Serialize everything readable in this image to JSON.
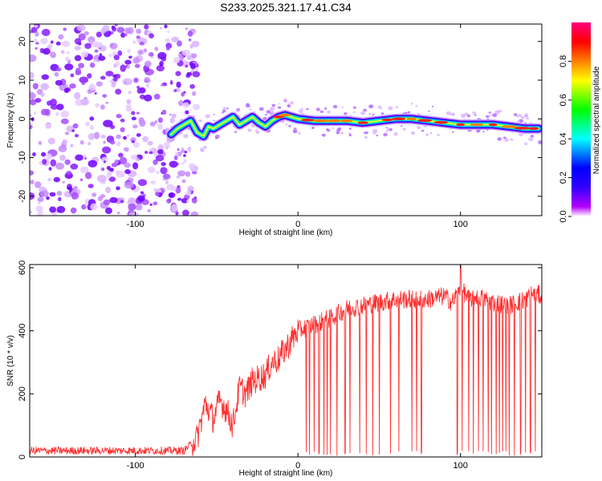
{
  "title": "S233.2025.321.17.41.C34",
  "chart_data": [
    {
      "type": "heatmap",
      "xlabel": "Height of straight line (km)",
      "ylabel": "Frequency (Hz)",
      "xlim": [
        -165,
        150
      ],
      "ylim": [
        -25,
        24.5
      ],
      "xticks": [
        -100,
        0,
        100
      ],
      "yticks": [
        -20,
        -10,
        0,
        10,
        20
      ],
      "xtick_labels": [
        "-100",
        "0",
        "100"
      ],
      "ytick_labels": [
        "-20",
        "-10",
        "0",
        "10",
        "20"
      ],
      "noise_region_km": [
        -165,
        -70
      ],
      "signal_track": {
        "x": [
          -78,
          -74,
          -70,
          -66,
          -62,
          -58,
          -55,
          -52,
          -48,
          -44,
          -40,
          -36,
          -32,
          -28,
          -24,
          -20,
          -16,
          -12,
          -8,
          -4,
          0,
          10,
          20,
          30,
          40,
          50,
          60,
          70,
          80,
          90,
          100,
          110,
          120,
          130,
          140,
          148
        ],
        "y": [
          -4,
          -2.5,
          -1.5,
          -0.5,
          -3.5,
          -4.5,
          -2,
          -2.5,
          -1.5,
          -0.5,
          0.5,
          -1.5,
          -0.5,
          0.5,
          -1,
          -2,
          -0.5,
          0.5,
          1,
          0.5,
          0,
          -0.5,
          -0.5,
          -0.5,
          -1,
          -0.5,
          0,
          0,
          -0.5,
          -1,
          -1.5,
          -1.5,
          -1.5,
          -2,
          -2.5,
          -2.5
        ]
      },
      "colorbar": {
        "label": "Normalized spectral amplitude",
        "range": [
          0,
          1
        ],
        "ticks": [
          0.0,
          0.2,
          0.4,
          0.6,
          0.8
        ],
        "tick_labels": [
          "0.0",
          "0.2",
          "0.4",
          "0.6",
          "0.8"
        ],
        "colors": [
          "#ffffff",
          "#b400ff",
          "#3200ff",
          "#0000ff",
          "#00ffff",
          "#00ff00",
          "#ffff00",
          "#ff8000",
          "#ff0000",
          "#ff0080"
        ]
      }
    },
    {
      "type": "line",
      "xlabel": "Height of straight line (km)",
      "ylabel": "SNR (10 * v/v)",
      "xlim": [
        -165,
        150
      ],
      "ylim": [
        0,
        610
      ],
      "xticks": [
        -100,
        0,
        100
      ],
      "yticks": [
        0,
        200,
        400,
        600
      ],
      "xtick_labels": [
        "-100",
        "0",
        "100"
      ],
      "ytick_labels": [
        "0",
        "200",
        "400",
        "600"
      ],
      "color": "#ff3030",
      "envelope": {
        "x": [
          -165,
          -70,
          -62,
          -57,
          -52,
          -48,
          -44,
          -40,
          -36,
          -32,
          -28,
          -24,
          -20,
          -16,
          -12,
          -8,
          -4,
          0,
          10,
          20,
          30,
          40,
          50,
          60,
          70,
          80,
          90,
          95,
          100,
          105,
          110,
          120,
          130,
          140,
          145,
          150
        ],
        "y": [
          20,
          20,
          60,
          170,
          120,
          180,
          150,
          100,
          220,
          200,
          240,
          250,
          260,
          300,
          310,
          340,
          370,
          400,
          420,
          440,
          470,
          480,
          490,
          500,
          500,
          500,
          510,
          490,
          540,
          500,
          510,
          490,
          480,
          500,
          520,
          510
        ]
      },
      "peak": {
        "x": 100,
        "y": 610
      },
      "dropouts_km": [
        5,
        7,
        10,
        13,
        16,
        18,
        20,
        24,
        29,
        32,
        38,
        42,
        46,
        50,
        57,
        62,
        70,
        73,
        76,
        98,
        101,
        105,
        108,
        111,
        114,
        117,
        119,
        122,
        124,
        126,
        128,
        130,
        133,
        137,
        140,
        143,
        146
      ]
    }
  ]
}
